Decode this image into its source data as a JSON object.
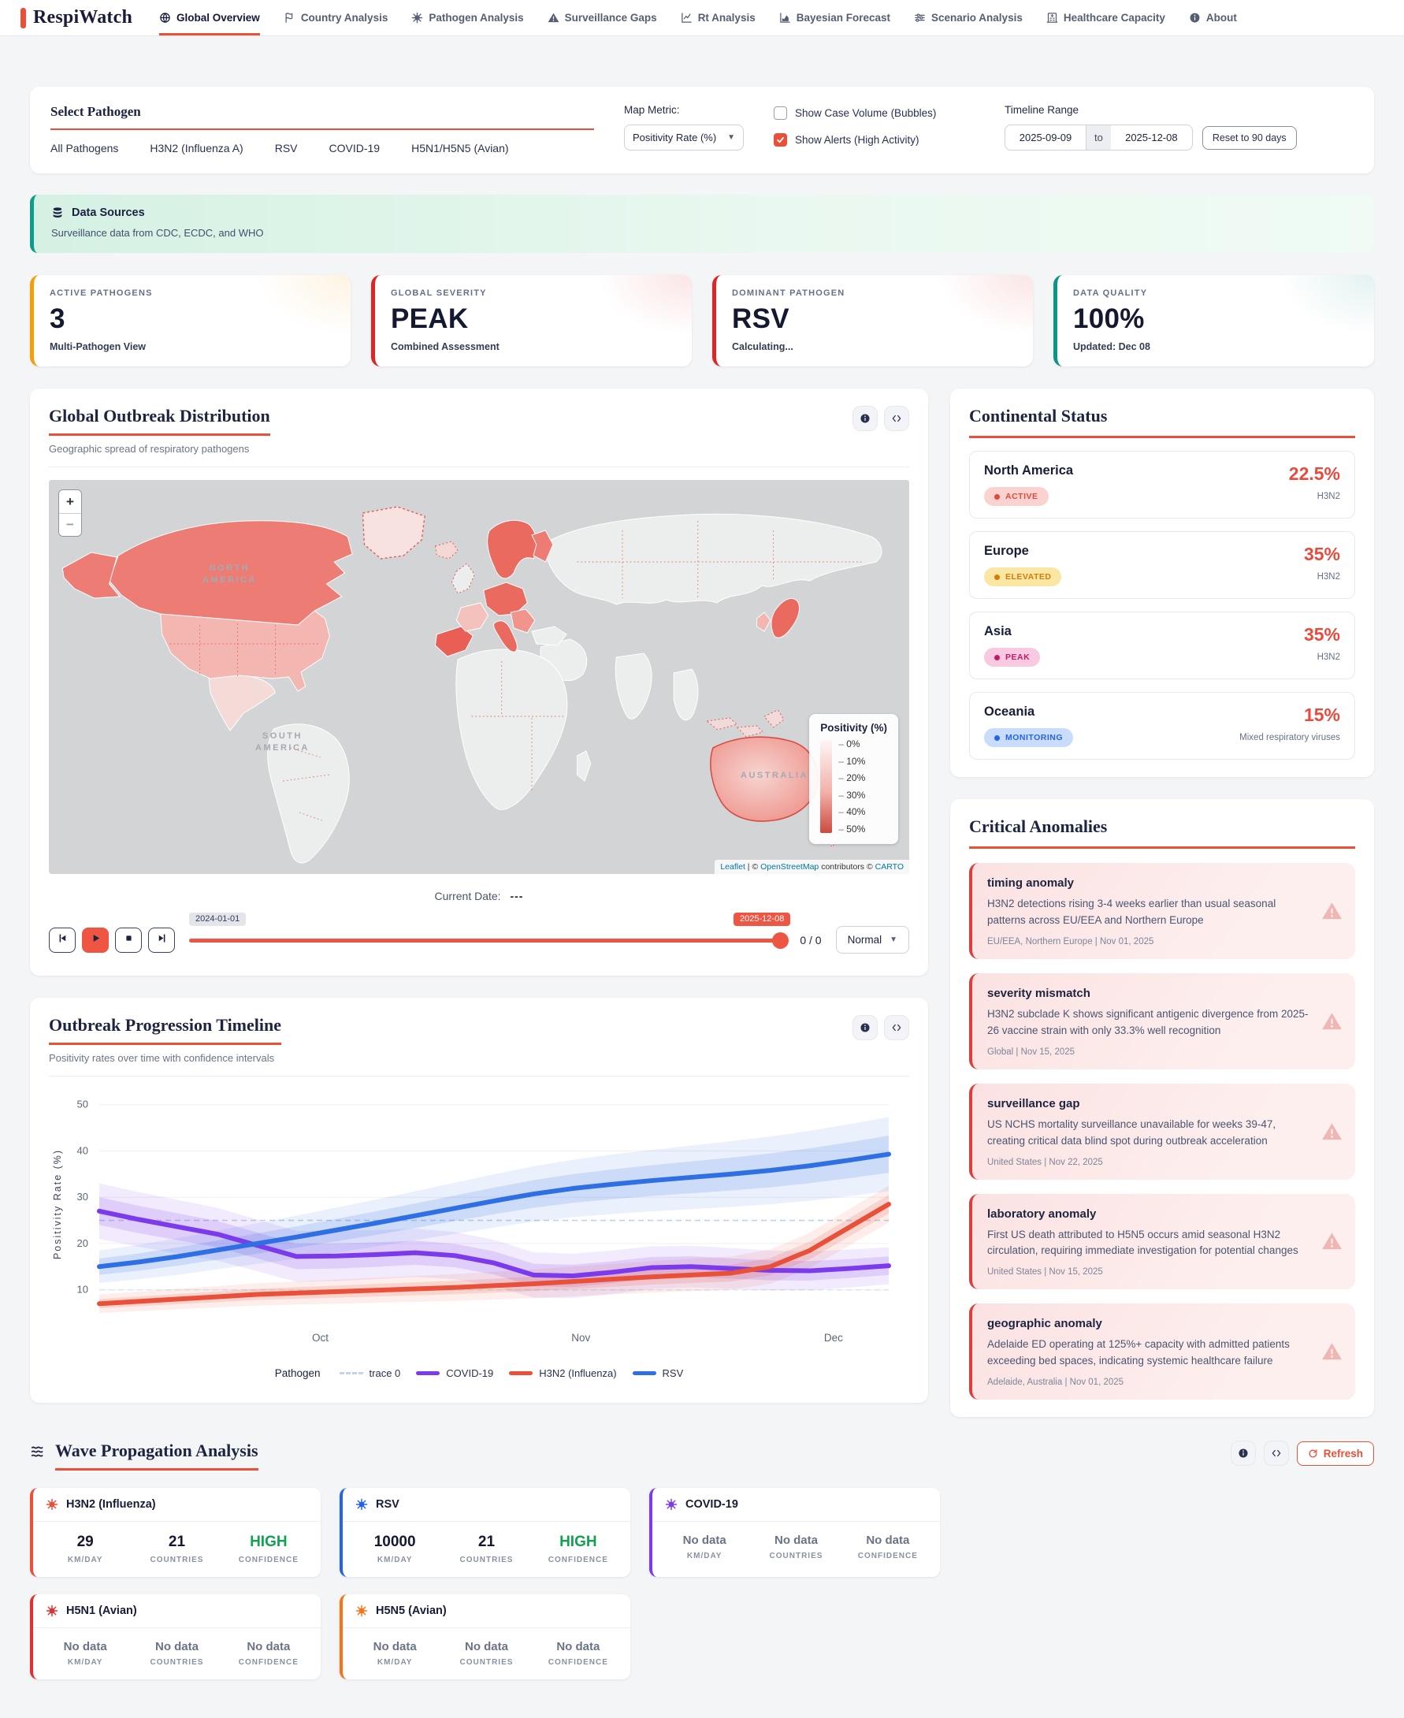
{
  "app": {
    "name": "RespiWatch"
  },
  "nav": {
    "items": [
      {
        "label": "Global Overview",
        "icon": "globe",
        "active": true
      },
      {
        "label": "Country Analysis",
        "icon": "flag",
        "active": false
      },
      {
        "label": "Pathogen Analysis",
        "icon": "virus",
        "active": false
      },
      {
        "label": "Surveillance Gaps",
        "icon": "warning",
        "active": false
      },
      {
        "label": "Rt Analysis",
        "icon": "linechart",
        "active": false
      },
      {
        "label": "Bayesian Forecast",
        "icon": "areachart",
        "active": false
      },
      {
        "label": "Scenario Analysis",
        "icon": "sliders",
        "active": false
      },
      {
        "label": "Healthcare Capacity",
        "icon": "building",
        "active": false
      },
      {
        "label": "About",
        "icon": "info",
        "active": false
      }
    ]
  },
  "filters": {
    "title": "Select Pathogen",
    "tabs": [
      "All Pathogens",
      "H3N2 (Influenza A)",
      "RSV",
      "COVID-19",
      "H5N1/H5N5 (Avian)"
    ],
    "map_metric_label": "Map Metric:",
    "map_metric_value": "Positivity Rate (%)",
    "checkboxes": [
      {
        "label": "Show Case Volume (Bubbles)",
        "checked": false
      },
      {
        "label": "Show Alerts (High Activity)",
        "checked": true
      }
    ],
    "timeline_label": "Timeline Range",
    "date_from": "2025-09-09",
    "date_to_word": "to",
    "date_to": "2025-12-08",
    "reset_label": "Reset to 90 days"
  },
  "data_sources": {
    "title": "Data Sources",
    "text": "Surveillance data from CDC, ECDC, and WHO"
  },
  "stats": [
    {
      "label": "ACTIVE PATHOGENS",
      "value": "3",
      "sub": "Multi-Pathogen View",
      "color": "#f59e0b"
    },
    {
      "label": "GLOBAL SEVERITY",
      "value": "PEAK",
      "sub": "Combined Assessment",
      "color": "#dc2626"
    },
    {
      "label": "DOMINANT PATHOGEN",
      "value": "RSV",
      "sub": "Calculating...",
      "color": "#dc2626"
    },
    {
      "label": "DATA QUALITY",
      "value": "100%",
      "sub": "Updated: Dec 08",
      "color": "#0d9488"
    }
  ],
  "map_card": {
    "title": "Global Outbreak Distribution",
    "subtitle": "Geographic spread of respiratory pathogens",
    "zoom_in": "+",
    "zoom_out": "−",
    "labels": [
      "NORTH AMERICA",
      "SOUTH AMERICA",
      "AUSTRALIA"
    ],
    "legend": {
      "title": "Positivity (%)",
      "ticks": [
        "0%",
        "10%",
        "20%",
        "30%",
        "40%",
        "50%"
      ]
    },
    "attribution": {
      "leaflet": "Leaflet",
      "sep": "|",
      "mid1": "©",
      "osm": "OpenStreetMap",
      "mid2": "contributors ©",
      "carto": "CARTO"
    },
    "current_date_label": "Current Date:",
    "current_date_value": "---",
    "slider_start": "2024-01-01",
    "slider_end": "2025-12-08",
    "counter": "0 / 0",
    "speed": "Normal"
  },
  "chart_card": {
    "title": "Outbreak Progression Timeline",
    "subtitle": "Positivity rates over time with confidence intervals",
    "legend_title": "Pathogen"
  },
  "chart_data": {
    "type": "line",
    "title": "Outbreak Progression Timeline",
    "xlabel": "",
    "ylabel": "Positivity Rate (%)",
    "ylim": [
      5,
      52
    ],
    "y_ticks": [
      10,
      20,
      30,
      40,
      50
    ],
    "x_ticks": [
      {
        "label": "Oct",
        "pos": 0.28
      },
      {
        "label": "Nov",
        "pos": 0.61
      },
      {
        "label": "Dec",
        "pos": 0.93
      }
    ],
    "thresholds": [
      25,
      10
    ],
    "grid": true,
    "legend_position": "bottom",
    "series": [
      {
        "name": "COVID-19",
        "color": "#7c3aed",
        "band": [
          6,
          4
        ],
        "values": [
          27,
          25.2,
          23.6,
          22,
          19.6,
          17.2,
          17.3,
          17.6,
          18,
          17.4,
          15.8,
          13.2,
          13,
          13.8,
          14.8,
          15,
          14.6,
          14.2,
          14.1,
          14.6,
          15.2
        ]
      },
      {
        "name": "H3N2 (Influenza)",
        "color": "#e8503a",
        "band": [
          2,
          4
        ],
        "values": [
          7,
          7.5,
          8,
          8.5,
          9,
          9.3,
          9.6,
          9.9,
          10.2,
          10.5,
          10.9,
          11.3,
          11.8,
          12.3,
          12.8,
          13.2,
          13.6,
          15,
          18.5,
          23.5,
          28.5
        ]
      },
      {
        "name": "RSV",
        "color": "#2f6fe4",
        "band": [
          3.5,
          8
        ],
        "values": [
          15,
          16,
          17.2,
          18.6,
          20,
          21.4,
          22.9,
          24.4,
          26,
          27.6,
          29.2,
          30.7,
          31.9,
          32.8,
          33.6,
          34.3,
          35,
          35.8,
          36.8,
          38,
          39.3
        ]
      }
    ],
    "legend": [
      {
        "label": "trace 0",
        "color": "#c6d4ea",
        "dash": true
      },
      {
        "label": "COVID-19",
        "color": "#7c3aed",
        "dash": false
      },
      {
        "label": "H3N2 (Influenza)",
        "color": "#e8503a",
        "dash": false
      },
      {
        "label": "RSV",
        "color": "#2f6fe4",
        "dash": false
      }
    ]
  },
  "continental": {
    "title": "Continental Status",
    "rows": [
      {
        "region": "North America",
        "status": "ACTIVE",
        "badge_bg": "#fad3d0",
        "badge_color": "#e2483d",
        "value": "22.5%",
        "sub": "H3N2"
      },
      {
        "region": "Europe",
        "status": "ELEVATED",
        "badge_bg": "#fbe7a4",
        "badge_color": "#d97b06",
        "value": "35%",
        "sub": "H3N2"
      },
      {
        "region": "Asia",
        "status": "PEAK",
        "badge_bg": "#f8c9e0",
        "badge_color": "#c01b66",
        "value": "35%",
        "sub": "H3N2"
      },
      {
        "region": "Oceania",
        "status": "MONITORING",
        "badge_bg": "#c9ddfa",
        "badge_color": "#2563eb",
        "value": "15%",
        "sub": "Mixed respiratory viruses"
      }
    ]
  },
  "anomalies": {
    "title": "Critical Anomalies",
    "items": [
      {
        "type": "timing anomaly",
        "desc": "H3N2 detections rising 3-4 weeks earlier than usual seasonal patterns across EU/EEA and Northern Europe",
        "meta": "EU/EEA, Northern Europe | Nov 01, 2025"
      },
      {
        "type": "severity mismatch",
        "desc": "H3N2 subclade K shows significant antigenic divergence from 2025-26 vaccine strain with only 33.3% well recognition",
        "meta": "Global | Nov 15, 2025"
      },
      {
        "type": "surveillance gap",
        "desc": "US NCHS mortality surveillance unavailable for weeks 39-47, creating critical data blind spot during outbreak acceleration",
        "meta": "United States | Nov 22, 2025"
      },
      {
        "type": "laboratory anomaly",
        "desc": "First US death attributed to H5N5 occurs amid seasonal H3N2 circulation, requiring immediate investigation for potential changes",
        "meta": "United States | Nov 15, 2025"
      },
      {
        "type": "geographic anomaly",
        "desc": "Adelaide ED operating at 125%+ capacity with admitted patients exceeding bed spaces, indicating systemic healthcare failure",
        "meta": "Adelaide, Australia | Nov 01, 2025"
      }
    ]
  },
  "wave": {
    "title": "Wave Propagation Analysis",
    "refresh_label": "Refresh",
    "cards": [
      {
        "name": "H3N2 (Influenza)",
        "color": "#e8503a",
        "stats": [
          {
            "value": "29",
            "label": "KM/DAY",
            "style": "normal"
          },
          {
            "value": "21",
            "label": "COUNTRIES",
            "style": "normal"
          },
          {
            "value": "HIGH",
            "label": "CONFIDENCE",
            "style": "green"
          }
        ]
      },
      {
        "name": "RSV",
        "color": "#2563eb",
        "stats": [
          {
            "value": "10000",
            "label": "KM/DAY",
            "style": "normal"
          },
          {
            "value": "21",
            "label": "COUNTRIES",
            "style": "normal"
          },
          {
            "value": "HIGH",
            "label": "CONFIDENCE",
            "style": "green"
          }
        ]
      },
      {
        "name": "COVID-19",
        "color": "#7c3aed",
        "stats": [
          {
            "value": "No data",
            "label": "KM/DAY",
            "style": "muted"
          },
          {
            "value": "No data",
            "label": "COUNTRIES",
            "style": "muted"
          },
          {
            "value": "No data",
            "label": "CONFIDENCE",
            "style": "muted"
          }
        ]
      },
      {
        "name": "H5N1 (Avian)",
        "color": "#e03131",
        "stats": [
          {
            "value": "No data",
            "label": "KM/DAY",
            "style": "muted"
          },
          {
            "value": "No data",
            "label": "COUNTRIES",
            "style": "muted"
          },
          {
            "value": "No data",
            "label": "CONFIDENCE",
            "style": "muted"
          }
        ]
      },
      {
        "name": "H5N5 (Avian)",
        "color": "#f97316",
        "stats": [
          {
            "value": "No data",
            "label": "KM/DAY",
            "style": "muted"
          },
          {
            "value": "No data",
            "label": "COUNTRIES",
            "style": "muted"
          },
          {
            "value": "No data",
            "label": "CONFIDENCE",
            "style": "muted"
          }
        ]
      }
    ]
  }
}
